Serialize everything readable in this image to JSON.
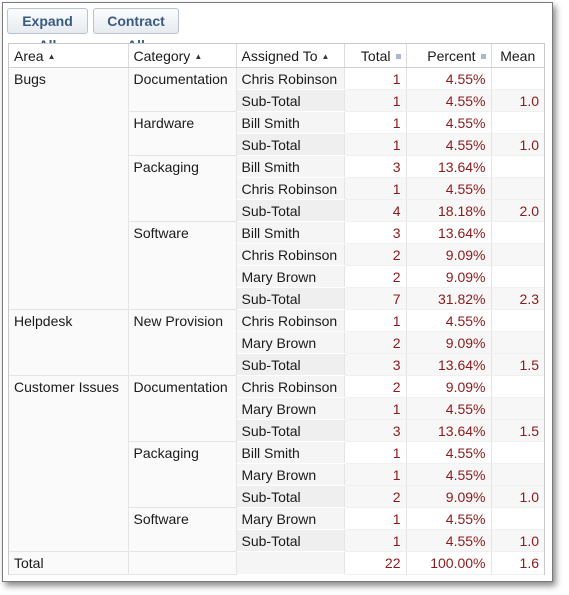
{
  "toolbar": {
    "expand_label": "Expand All",
    "contract_label": "Contract All"
  },
  "columns": {
    "area": "Area",
    "category": "Category",
    "assigned": "Assigned To",
    "total": "Total",
    "percent": "Percent",
    "mean": "Mean"
  },
  "rows": [
    {
      "area": "Bugs",
      "category": "Documentation",
      "assigned": "Chris Robinson",
      "total": "1",
      "percent": "4.55%",
      "mean": ""
    },
    {
      "area": "",
      "category": "",
      "assigned": "Sub-Total",
      "total": "1",
      "percent": "4.55%",
      "mean": "1.0"
    },
    {
      "area": "",
      "category": "Hardware",
      "assigned": "Bill Smith",
      "total": "1",
      "percent": "4.55%",
      "mean": ""
    },
    {
      "area": "",
      "category": "",
      "assigned": "Sub-Total",
      "total": "1",
      "percent": "4.55%",
      "mean": "1.0"
    },
    {
      "area": "",
      "category": "Packaging",
      "assigned": "Bill Smith",
      "total": "3",
      "percent": "13.64%",
      "mean": ""
    },
    {
      "area": "",
      "category": "",
      "assigned": "Chris Robinson",
      "total": "1",
      "percent": "4.55%",
      "mean": ""
    },
    {
      "area": "",
      "category": "",
      "assigned": "Sub-Total",
      "total": "4",
      "percent": "18.18%",
      "mean": "2.0"
    },
    {
      "area": "",
      "category": "Software",
      "assigned": "Bill Smith",
      "total": "3",
      "percent": "13.64%",
      "mean": ""
    },
    {
      "area": "",
      "category": "",
      "assigned": "Chris Robinson",
      "total": "2",
      "percent": "9.09%",
      "mean": ""
    },
    {
      "area": "",
      "category": "",
      "assigned": "Mary Brown",
      "total": "2",
      "percent": "9.09%",
      "mean": ""
    },
    {
      "area": "",
      "category": "",
      "assigned": "Sub-Total",
      "total": "7",
      "percent": "31.82%",
      "mean": "2.3"
    },
    {
      "area": "Helpdesk",
      "category": "New Provision",
      "assigned": "Chris Robinson",
      "total": "1",
      "percent": "4.55%",
      "mean": ""
    },
    {
      "area": "",
      "category": "",
      "assigned": "Mary Brown",
      "total": "2",
      "percent": "9.09%",
      "mean": ""
    },
    {
      "area": "",
      "category": "",
      "assigned": "Sub-Total",
      "total": "3",
      "percent": "13.64%",
      "mean": "1.5"
    },
    {
      "area": "Customer Issues",
      "category": "Documentation",
      "assigned": "Chris Robinson",
      "total": "2",
      "percent": "9.09%",
      "mean": ""
    },
    {
      "area": "",
      "category": "",
      "assigned": "Mary Brown",
      "total": "1",
      "percent": "4.55%",
      "mean": ""
    },
    {
      "area": "",
      "category": "",
      "assigned": "Sub-Total",
      "total": "3",
      "percent": "13.64%",
      "mean": "1.5"
    },
    {
      "area": "",
      "category": "Packaging",
      "assigned": "Bill Smith",
      "total": "1",
      "percent": "4.55%",
      "mean": ""
    },
    {
      "area": "",
      "category": "",
      "assigned": "Mary Brown",
      "total": "1",
      "percent": "4.55%",
      "mean": ""
    },
    {
      "area": "",
      "category": "",
      "assigned": "Sub-Total",
      "total": "2",
      "percent": "9.09%",
      "mean": "1.0"
    },
    {
      "area": "",
      "category": "Software",
      "assigned": "Mary Brown",
      "total": "1",
      "percent": "4.55%",
      "mean": ""
    },
    {
      "area": "",
      "category": "",
      "assigned": "Sub-Total",
      "total": "1",
      "percent": "4.55%",
      "mean": "1.0"
    }
  ],
  "grand_total": {
    "label": "Total",
    "total": "22",
    "percent": "100.00%",
    "mean": "1.6"
  },
  "colors": {
    "value_text": "#8b1a1a",
    "button_text": "#3a5a80"
  }
}
